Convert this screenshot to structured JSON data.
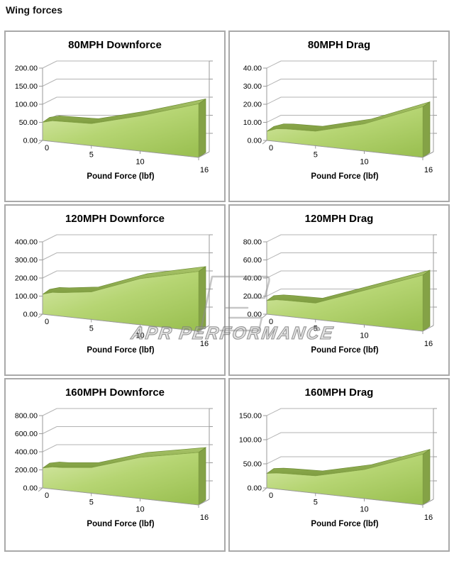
{
  "page": {
    "heading": "Wing forces"
  },
  "watermark": {
    "text": "APR PERFORMANCE",
    "logo_icon": "apr-logo"
  },
  "colors": {
    "area_front_light": "#d8e9ab",
    "area_front_mid": "#b6d573",
    "area_front_dark": "#9cc153",
    "area_top_light": "#a9c569",
    "area_top_dark": "#7f9d41",
    "area_side": "#84a246",
    "area_edge": "#6e8c36",
    "grid": "#b3b3b3",
    "axis": "#9a9a9a",
    "panel_border": "#a9a9a9",
    "text": "#000000",
    "watermark_gray": "#8f8f8f"
  },
  "chart_data": [
    {
      "type": "area",
      "title": "80MPH Downforce",
      "xlabel": "Pound Force (lbf)",
      "xlim": [
        0,
        16
      ],
      "ylim": [
        0,
        200
      ],
      "x_ticks": [
        "0",
        "5",
        "10",
        "16"
      ],
      "x_tick_values": [
        0,
        5,
        10,
        16
      ],
      "y_ticks": [
        "0.00",
        "50.00",
        "100.00",
        "150.00",
        "200.00"
      ],
      "y_tick_values": [
        0,
        50,
        100,
        150,
        200
      ],
      "grid": true,
      "legend": "none",
      "points": [
        [
          0,
          50
        ],
        [
          1,
          57
        ],
        [
          2,
          58
        ],
        [
          5,
          61
        ],
        [
          10,
          97
        ],
        [
          16,
          148
        ]
      ]
    },
    {
      "type": "area",
      "title": "80MPH Drag",
      "xlabel": "Pound Force (lbf)",
      "xlim": [
        0,
        16
      ],
      "ylim": [
        0,
        40
      ],
      "x_ticks": [
        "0",
        "5",
        "10",
        "16"
      ],
      "x_tick_values": [
        0,
        5,
        10,
        16
      ],
      "y_ticks": [
        "0.00",
        "10.00",
        "20.00",
        "30.00",
        "40.00"
      ],
      "y_tick_values": [
        0,
        10,
        20,
        30,
        40
      ],
      "grid": true,
      "legend": "none",
      "points": [
        [
          0,
          5
        ],
        [
          1,
          7
        ],
        [
          2,
          7.5
        ],
        [
          5,
          8
        ],
        [
          10,
          15
        ],
        [
          16,
          28
        ]
      ]
    },
    {
      "type": "area",
      "title": "120MPH Downforce",
      "xlabel": "Pound Force (lbf)",
      "xlim": [
        0,
        16
      ],
      "ylim": [
        0,
        400
      ],
      "x_ticks": [
        "0",
        "5",
        "10",
        "16"
      ],
      "x_tick_values": [
        0,
        5,
        10,
        16
      ],
      "y_ticks": [
        "0.00",
        "100.00",
        "200.00",
        "300.00",
        "400.00"
      ],
      "y_tick_values": [
        0,
        100,
        200,
        300,
        400
      ],
      "grid": true,
      "legend": "none",
      "points": [
        [
          0,
          110
        ],
        [
          1,
          126
        ],
        [
          2,
          130
        ],
        [
          5,
          152
        ],
        [
          10,
          255
        ],
        [
          16,
          330
        ]
      ]
    },
    {
      "type": "area",
      "title": "120MPH Drag",
      "xlabel": "Pound Force (lbf)",
      "xlim": [
        0,
        16
      ],
      "ylim": [
        0,
        80
      ],
      "x_ticks": [
        "0",
        "5",
        "10",
        "16"
      ],
      "x_tick_values": [
        0,
        5,
        10,
        16
      ],
      "y_ticks": [
        "0.00",
        "20.00",
        "40.00",
        "60.00",
        "80.00"
      ],
      "y_tick_values": [
        0,
        20,
        40,
        60,
        80
      ],
      "grid": true,
      "legend": "none",
      "points": [
        [
          0,
          15
        ],
        [
          1,
          17
        ],
        [
          2,
          17.5
        ],
        [
          5,
          18
        ],
        [
          10,
          38
        ],
        [
          16,
          62
        ]
      ]
    },
    {
      "type": "area",
      "title": "160MPH Downforce",
      "xlabel": "Pound Force (lbf)",
      "xlim": [
        0,
        16
      ],
      "ylim": [
        0,
        800
      ],
      "x_ticks": [
        "0",
        "5",
        "10",
        "16"
      ],
      "x_tick_values": [
        0,
        5,
        10,
        16
      ],
      "y_ticks": [
        "0.00",
        "200.00",
        "400.00",
        "600.00",
        "800.00"
      ],
      "y_tick_values": [
        0,
        200,
        400,
        600,
        800
      ],
      "grid": true,
      "legend": "none",
      "points": [
        [
          0,
          220
        ],
        [
          1,
          243
        ],
        [
          2,
          248
        ],
        [
          5,
          283
        ],
        [
          10,
          455
        ],
        [
          16,
          580
        ]
      ]
    },
    {
      "type": "area",
      "title": "160MPH Drag",
      "xlabel": "Pound Force (lbf)",
      "xlim": [
        0,
        16
      ],
      "ylim": [
        0,
        150
      ],
      "x_ticks": [
        "0",
        "5",
        "10",
        "16"
      ],
      "x_tick_values": [
        0,
        5,
        10,
        16
      ],
      "y_ticks": [
        "0.00",
        "50.00",
        "100.00",
        "150.00"
      ],
      "y_tick_values": [
        0,
        50,
        100,
        150
      ],
      "grid": true,
      "legend": "none",
      "points": [
        [
          0,
          30
        ],
        [
          1,
          33
        ],
        [
          2,
          34
        ],
        [
          5,
          36
        ],
        [
          10,
          60
        ],
        [
          16,
          105
        ]
      ]
    }
  ]
}
